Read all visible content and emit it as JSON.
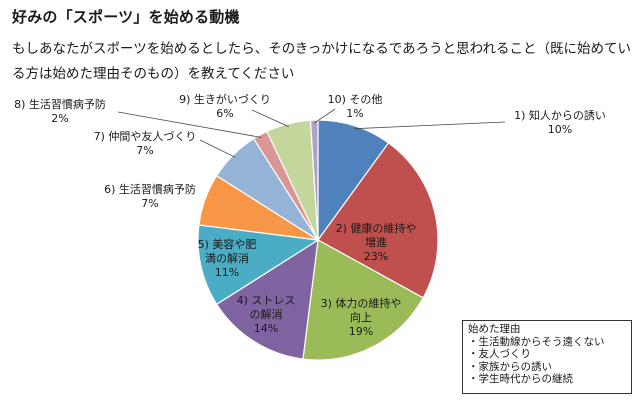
{
  "heading": "好みの「スポーツ」を始める動機",
  "question": "もしあなたがスポーツを始めるとしたら、そのきっかけになるであろうと思われること（既に始めている方は始めた理由そのもの）を教えてください",
  "chart_data": {
    "type": "pie",
    "title": "",
    "unit": "%",
    "start_angle_deg": 0,
    "direction": "clockwise",
    "slices": [
      {
        "name": "1) 知人からの誘い",
        "value": 10,
        "value_label": "10%",
        "color": "#4f81bd"
      },
      {
        "name": "2) 健康の維持や増進",
        "value": 23,
        "value_label": "23%",
        "color": "#c0504d"
      },
      {
        "name": "3) 体力の維持や向上",
        "value": 19,
        "value_label": "19%",
        "color": "#9bbb59"
      },
      {
        "name": "4) ストレスの解消",
        "value": 14,
        "value_label": "14%",
        "color": "#8064a2"
      },
      {
        "name": "5) 美容や肥満の解消",
        "value": 11,
        "value_label": "11%",
        "color": "#4bacc6"
      },
      {
        "name": "6) 生活習慣病予防",
        "value": 7,
        "value_label": "7%",
        "color": "#f79646"
      },
      {
        "name": "7) 仲間や友人づくり",
        "value": 7,
        "value_label": "7%",
        "color": "#95b3d7"
      },
      {
        "name": "8) 生活習慣病予防",
        "value": 2,
        "value_label": "2%",
        "color": "#d99694"
      },
      {
        "name": "9) 生きがいづくり",
        "value": 6,
        "value_label": "6%",
        "color": "#c3d69b"
      },
      {
        "name": "10) その他",
        "value": 1,
        "value_label": "1%",
        "color": "#b2a1c7"
      }
    ]
  },
  "slice_labels": [
    {
      "lines": [
        "1) 知人からの誘い",
        "10%"
      ]
    },
    {
      "lines": [
        "2) 健康の維持や",
        "増進",
        "23%"
      ]
    },
    {
      "lines": [
        "3) 体力の維持や",
        "向上",
        "19%"
      ]
    },
    {
      "lines": [
        "4) ストレス",
        "の解消",
        "14%"
      ]
    },
    {
      "lines": [
        "5) 美容や肥",
        "満の解消",
        "11%"
      ]
    },
    {
      "lines": [
        "6) 生活習慣病予防",
        "7%"
      ]
    },
    {
      "lines": [
        "7) 仲間や友人づくり",
        "7%"
      ]
    },
    {
      "lines": [
        "8) 生活習慣病予防",
        "2%"
      ]
    },
    {
      "lines": [
        "9) 生きがいづくり",
        "6%"
      ]
    },
    {
      "lines": [
        "10) その他",
        "1%"
      ]
    }
  ],
  "note": {
    "title": "始めた理由",
    "items": [
      "生活動線からそう遠くない",
      "友人づくり",
      "家族からの誘い",
      "学生時代からの継続"
    ]
  }
}
